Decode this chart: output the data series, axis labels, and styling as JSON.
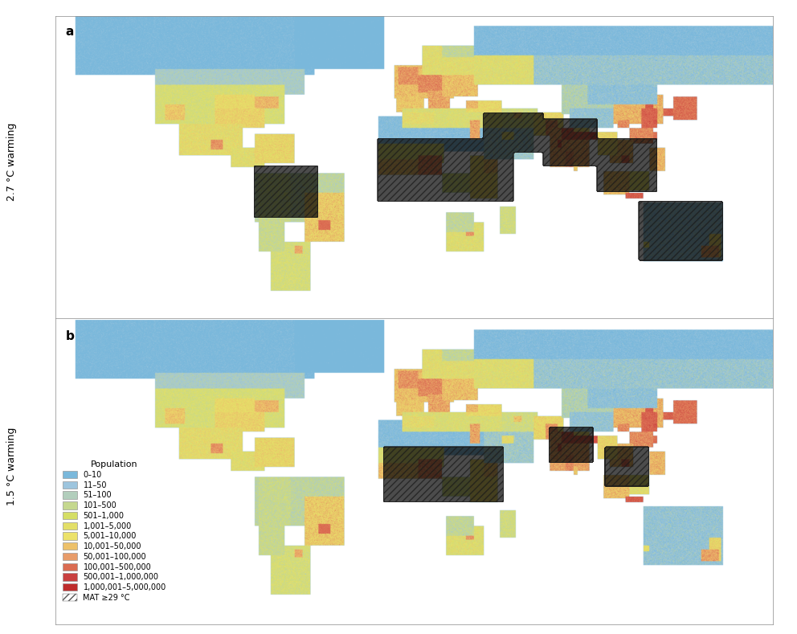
{
  "title_a": "a",
  "title_b": "b",
  "label_a": "2.7 °C warming",
  "label_b": "1.5 °C warming",
  "legend_title": "Population",
  "legend_labels": [
    "0–10",
    "11–50",
    "51–100",
    "101–500",
    "501–1,000",
    "1,001–5,000",
    "5,001–10,000",
    "10,001–50,000",
    "50,001–100,000",
    "100,001–500,000",
    "500,001–1,000,000",
    "1,000,001–5,000,000",
    "MAT ≥29 °C"
  ],
  "pop_colors": [
    "#7ab8db",
    "#9dc5de",
    "#b2cebc",
    "#c5d88e",
    "#d5de65",
    "#e3df68",
    "#ece26a",
    "#edc16a",
    "#e89c6a",
    "#db6c52",
    "#c94040",
    "#bf2c2c"
  ],
  "ocean_color": "#ffffff",
  "land_base": "#7ab8db",
  "background": "#ffffff",
  "hatch_color": "#1a1a1a",
  "border_color": "#ffffff",
  "label_fontsize": 9,
  "title_fontsize": 11,
  "fig_width": 9.92,
  "fig_height": 7.89,
  "bounds": [
    0,
    10,
    50,
    100,
    500,
    1000,
    5000,
    10000,
    50000,
    100000,
    500000,
    1000000,
    5000000
  ]
}
